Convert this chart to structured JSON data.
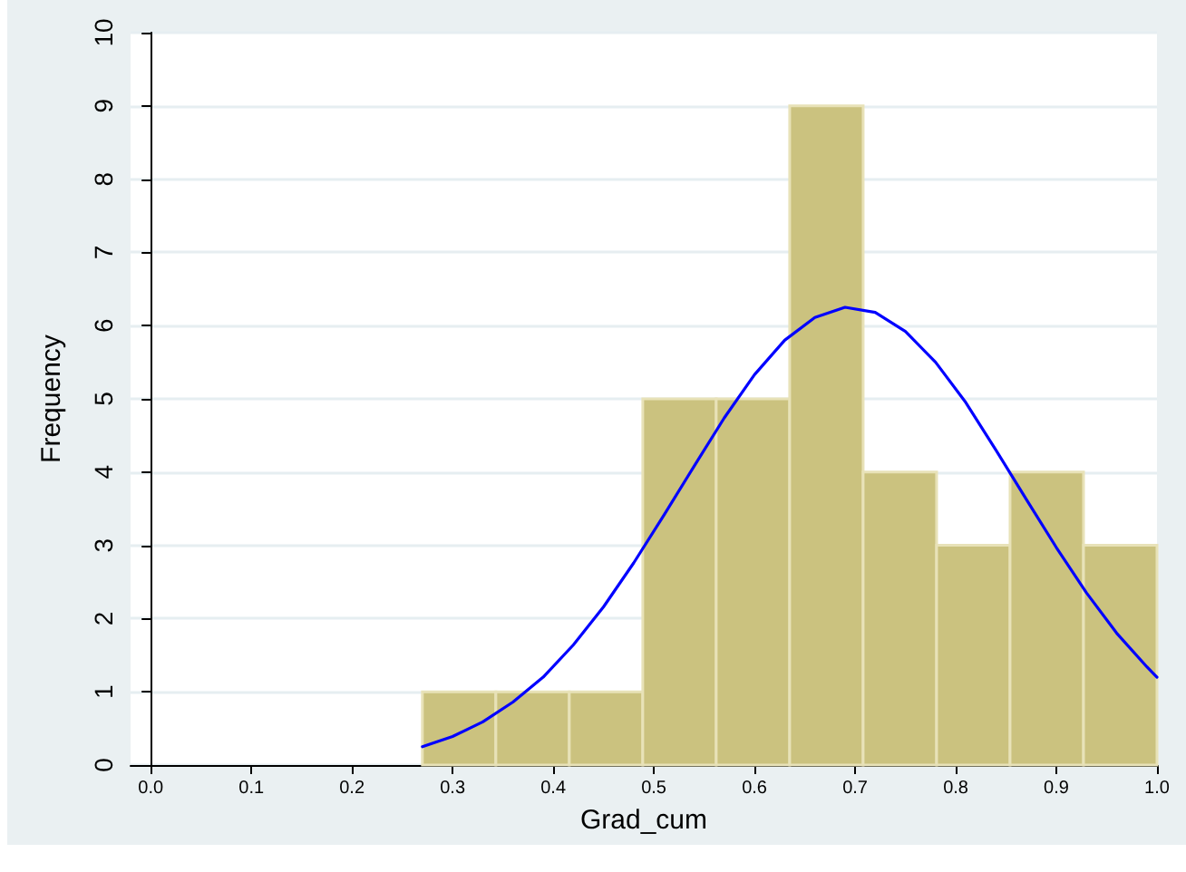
{
  "chart_data": {
    "type": "histogram",
    "xlabel": "Grad_cum",
    "ylabel": "Frequency",
    "bins": [
      0.27,
      0.343,
      0.416,
      0.489,
      0.562,
      0.635,
      0.708,
      0.781,
      0.854,
      0.927,
      1.0
    ],
    "values": [
      1,
      1,
      1,
      5,
      5,
      9,
      4,
      3,
      4,
      3
    ],
    "color": "#cbc27f",
    "series": [
      {
        "type": "line",
        "color": "#0000ff",
        "x": [
          0.27,
          0.3,
          0.33,
          0.36,
          0.39,
          0.42,
          0.45,
          0.48,
          0.51,
          0.54,
          0.57,
          0.6,
          0.63,
          0.66,
          0.69,
          0.72,
          0.75,
          0.78,
          0.81,
          0.84,
          0.87,
          0.9,
          0.93,
          0.96,
          0.99,
          1.0
        ],
        "values": [
          0.25,
          0.39,
          0.59,
          0.86,
          1.2,
          1.64,
          2.16,
          2.76,
          3.41,
          4.08,
          4.74,
          5.33,
          5.8,
          6.11,
          6.25,
          6.18,
          5.92,
          5.5,
          4.95,
          4.3,
          3.63,
          2.97,
          2.35,
          1.8,
          1.34,
          1.2
        ]
      }
    ],
    "xlim": [
      -0.02,
      1.0
    ],
    "xticks": [
      {
        "value": 0,
        "label": "0.0"
      },
      0.1,
      0.2,
      0.3,
      0.4,
      0.5,
      0.6,
      0.7,
      0.8,
      0.9,
      {
        "value": 1,
        "label": "1.0"
      }
    ],
    "ylim": [
      0,
      10
    ],
    "yticks": [
      0,
      1,
      2,
      3,
      4,
      5,
      6,
      7,
      8,
      9,
      10
    ],
    "grid": "y",
    "marker": "none",
    "line_style": "solid"
  }
}
